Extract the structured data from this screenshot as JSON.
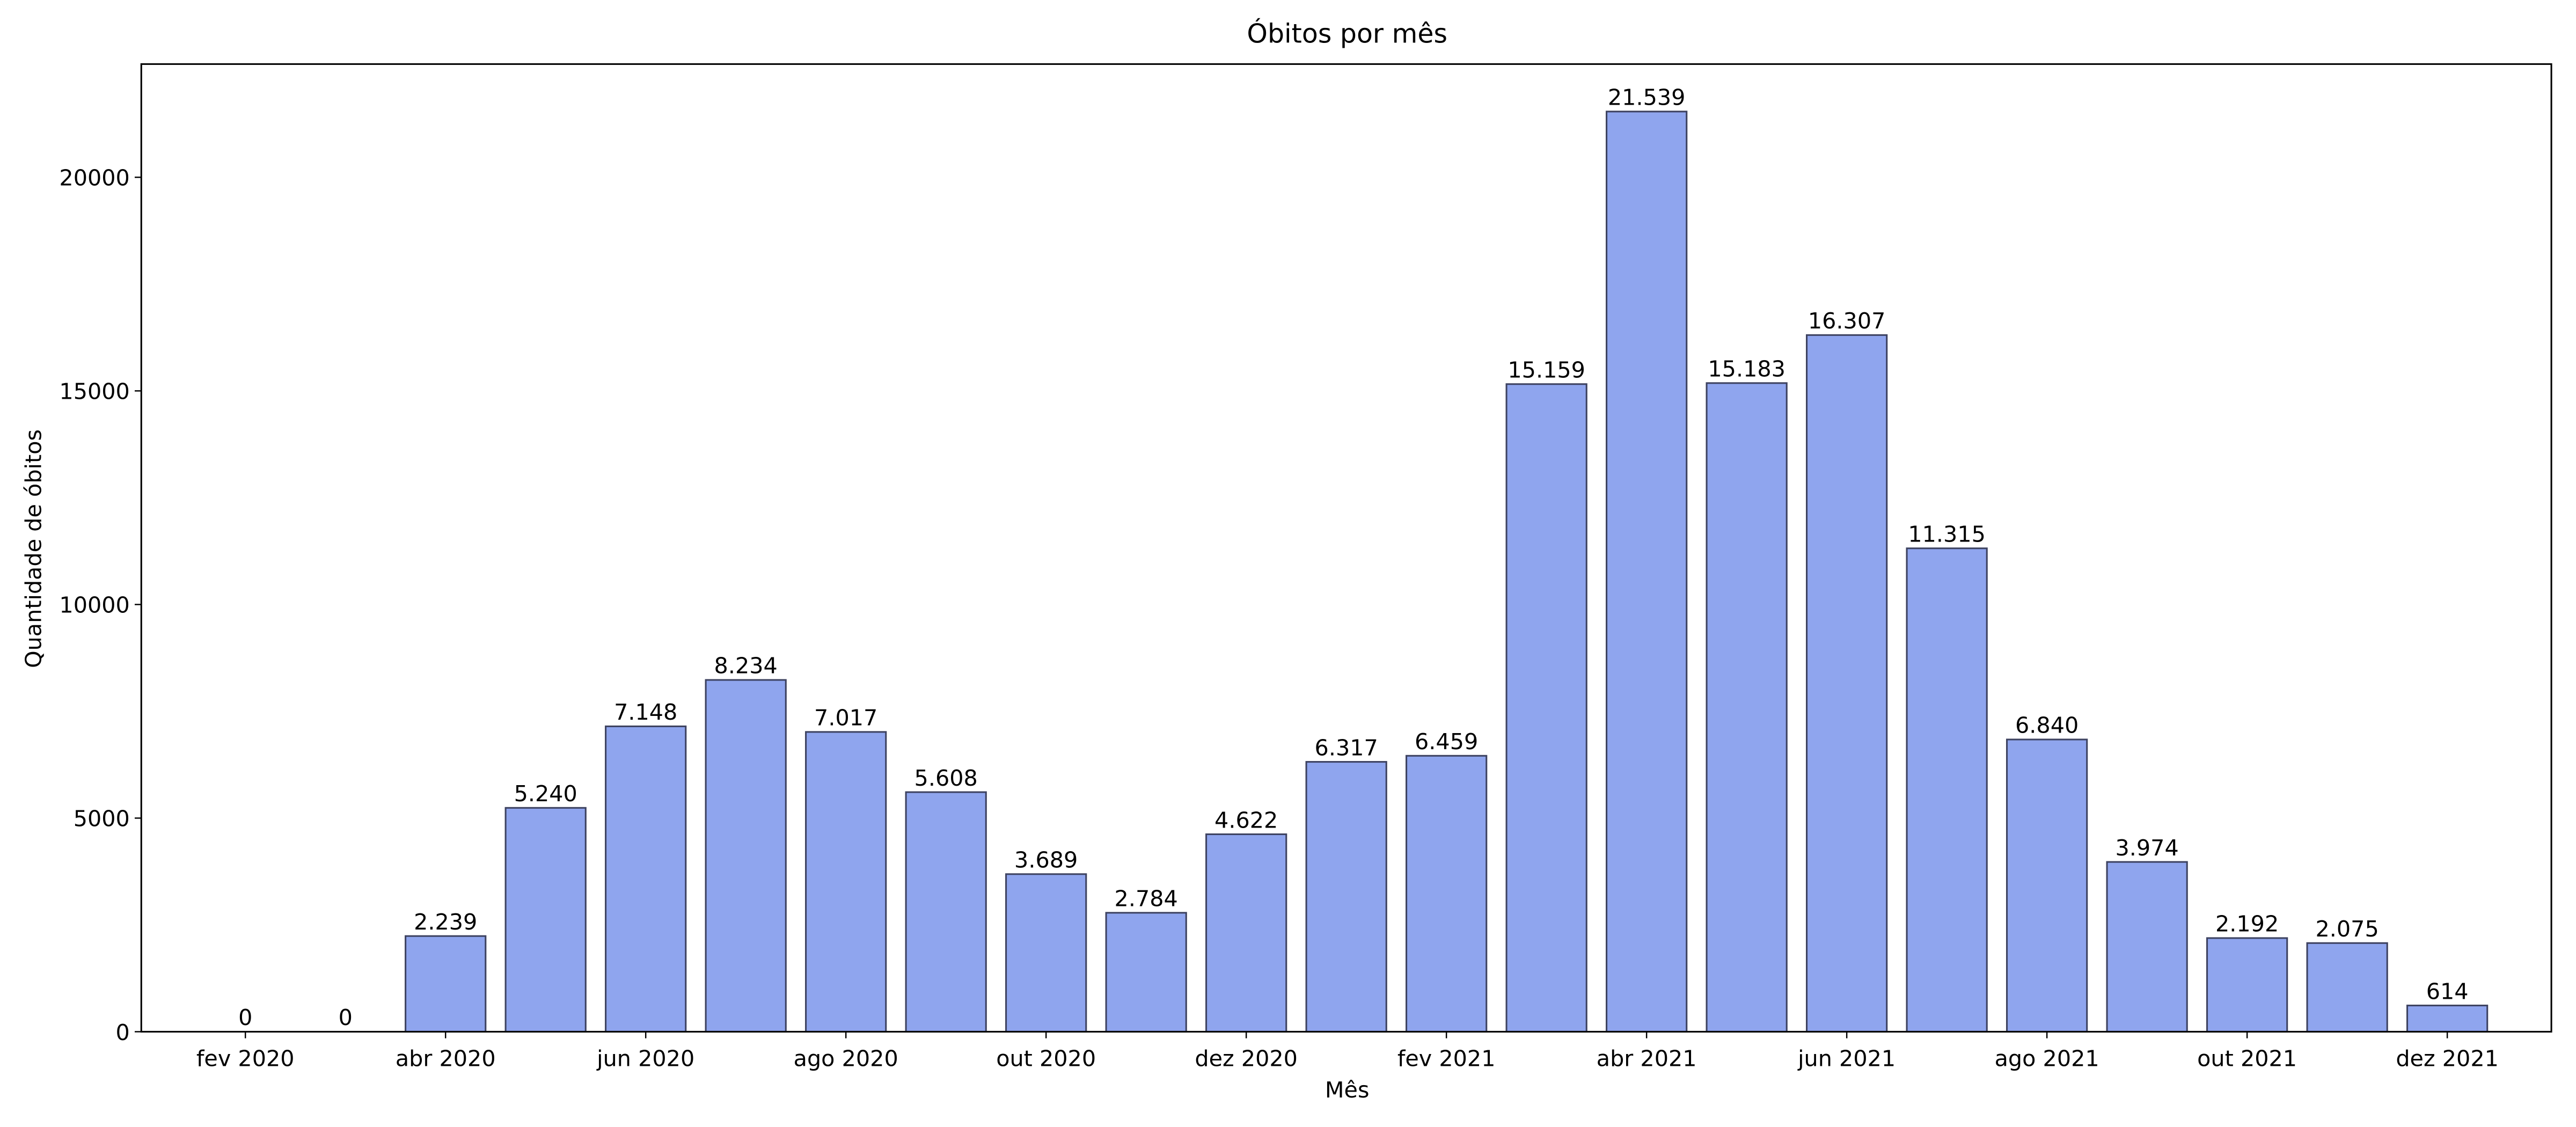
{
  "chart_data": {
    "type": "bar",
    "title": "Óbitos por mês",
    "x_label": "Mês",
    "y_label": "Quantidade de óbitos",
    "categories": [
      "fev 2020",
      null,
      "abr 2020",
      null,
      "jun 2020",
      null,
      "ago 2020",
      null,
      "out 2020",
      null,
      "dez 2020",
      null,
      "fev 2021",
      null,
      "abr 2021",
      null,
      "jun 2021",
      null,
      "ago 2021",
      null,
      "out 2021",
      null,
      "dez 2021"
    ],
    "values": [
      0,
      0,
      2239,
      5240,
      7148,
      8234,
      7017,
      5608,
      3689,
      2784,
      4622,
      6317,
      6459,
      15159,
      21539,
      15183,
      16307,
      11315,
      6840,
      3974,
      2192,
      2075,
      614
    ],
    "value_labels": [
      "0",
      "0",
      "2.239",
      "5.240",
      "7.148",
      "8.234",
      "7.017",
      "5.608",
      "3.689",
      "2.784",
      "4.622",
      "6.317",
      "6.459",
      "15.159",
      "21.539",
      "15.183",
      "16.307",
      "11.315",
      "6.840",
      "3.974",
      "2.192",
      "2.075",
      "614"
    ],
    "color": "#8fa5ee",
    "edge_color": "#3d4260",
    "ylim": [
      0,
      22650
    ],
    "yticks": [
      0,
      5000,
      10000,
      15000,
      20000
    ],
    "grid": false
  }
}
